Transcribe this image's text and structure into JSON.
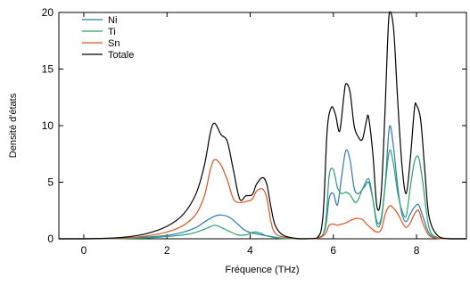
{
  "chart_data": {
    "type": "line",
    "title": "",
    "xlabel": "Fréquence (THz)",
    "ylabel": "Densité d'états",
    "xlim": [
      -0.6,
      9.2
    ],
    "ylim": [
      0,
      20
    ],
    "xticks": [
      0,
      2,
      4,
      6,
      8
    ],
    "yticks": [
      0,
      5,
      10,
      15,
      20
    ],
    "grid": false,
    "legend": "top-left",
    "series": [
      {
        "name": "Ni",
        "color": "#2a7ab8",
        "points": [
          [
            -0.6,
            0
          ],
          [
            0,
            0
          ],
          [
            0.5,
            0.01
          ],
          [
            1.0,
            0.05
          ],
          [
            1.5,
            0.15
          ],
          [
            2.0,
            0.3
          ],
          [
            2.4,
            0.6
          ],
          [
            2.7,
            1.0
          ],
          [
            2.95,
            1.6
          ],
          [
            3.15,
            2.0
          ],
          [
            3.3,
            2.1
          ],
          [
            3.5,
            1.9
          ],
          [
            3.7,
            1.3
          ],
          [
            3.85,
            0.8
          ],
          [
            4.0,
            0.55
          ],
          [
            4.2,
            0.4
          ],
          [
            4.5,
            0.2
          ],
          [
            4.8,
            0.05
          ],
          [
            5.2,
            0.0
          ],
          [
            5.6,
            0.02
          ],
          [
            5.8,
            0.8
          ],
          [
            5.9,
            3.6
          ],
          [
            6.0,
            4.0
          ],
          [
            6.1,
            3.0
          ],
          [
            6.2,
            5.5
          ],
          [
            6.3,
            7.8
          ],
          [
            6.4,
            7.0
          ],
          [
            6.5,
            4.5
          ],
          [
            6.6,
            4.0
          ],
          [
            6.75,
            4.6
          ],
          [
            6.85,
            5.0
          ],
          [
            6.95,
            3.5
          ],
          [
            7.05,
            1.5
          ],
          [
            7.15,
            1.8
          ],
          [
            7.25,
            5.0
          ],
          [
            7.35,
            9.9
          ],
          [
            7.45,
            8.0
          ],
          [
            7.55,
            4.5
          ],
          [
            7.65,
            2.2
          ],
          [
            7.75,
            1.5
          ],
          [
            7.85,
            2.2
          ],
          [
            7.95,
            2.8
          ],
          [
            8.05,
            3.0
          ],
          [
            8.15,
            2.0
          ],
          [
            8.3,
            0.5
          ],
          [
            8.5,
            0.05
          ],
          [
            8.8,
            0
          ],
          [
            9.2,
            0
          ]
        ]
      },
      {
        "name": "Ti",
        "color": "#2aa36a",
        "points": [
          [
            -0.6,
            0
          ],
          [
            0,
            0
          ],
          [
            0.5,
            0.01
          ],
          [
            1.0,
            0.03
          ],
          [
            1.5,
            0.08
          ],
          [
            2.0,
            0.2
          ],
          [
            2.5,
            0.4
          ],
          [
            2.8,
            0.7
          ],
          [
            3.0,
            1.0
          ],
          [
            3.15,
            1.2
          ],
          [
            3.3,
            1.0
          ],
          [
            3.5,
            0.65
          ],
          [
            3.7,
            0.35
          ],
          [
            3.9,
            0.35
          ],
          [
            4.1,
            0.6
          ],
          [
            4.25,
            0.5
          ],
          [
            4.4,
            0.25
          ],
          [
            4.7,
            0.05
          ],
          [
            5.2,
            0.0
          ],
          [
            5.6,
            0.02
          ],
          [
            5.8,
            1.0
          ],
          [
            5.9,
            5.6
          ],
          [
            6.0,
            6.1
          ],
          [
            6.1,
            4.5
          ],
          [
            6.2,
            4.0
          ],
          [
            6.3,
            4.1
          ],
          [
            6.4,
            3.9
          ],
          [
            6.55,
            3.2
          ],
          [
            6.7,
            4.4
          ],
          [
            6.85,
            5.3
          ],
          [
            6.95,
            3.5
          ],
          [
            7.05,
            1.2
          ],
          [
            7.15,
            1.6
          ],
          [
            7.25,
            4.8
          ],
          [
            7.35,
            7.8
          ],
          [
            7.45,
            6.5
          ],
          [
            7.55,
            4.0
          ],
          [
            7.65,
            2.5
          ],
          [
            7.75,
            2.0
          ],
          [
            7.85,
            4.5
          ],
          [
            7.95,
            6.8
          ],
          [
            8.05,
            7.2
          ],
          [
            8.15,
            5.0
          ],
          [
            8.3,
            1.0
          ],
          [
            8.5,
            0.1
          ],
          [
            8.8,
            0
          ],
          [
            9.2,
            0
          ]
        ]
      },
      {
        "name": "Sn",
        "color": "#e0521e",
        "points": [
          [
            -0.6,
            0
          ],
          [
            0,
            0
          ],
          [
            0.5,
            0.02
          ],
          [
            1.0,
            0.08
          ],
          [
            1.5,
            0.25
          ],
          [
            2.0,
            0.6
          ],
          [
            2.4,
            1.2
          ],
          [
            2.7,
            2.2
          ],
          [
            2.9,
            3.8
          ],
          [
            3.05,
            6.2
          ],
          [
            3.15,
            7.0
          ],
          [
            3.3,
            6.5
          ],
          [
            3.45,
            5.2
          ],
          [
            3.6,
            3.5
          ],
          [
            3.75,
            3.2
          ],
          [
            3.9,
            3.3
          ],
          [
            4.05,
            3.5
          ],
          [
            4.15,
            4.2
          ],
          [
            4.3,
            4.4
          ],
          [
            4.4,
            3.6
          ],
          [
            4.5,
            1.5
          ],
          [
            4.6,
            0.5
          ],
          [
            4.8,
            0.15
          ],
          [
            5.2,
            0.0
          ],
          [
            5.6,
            0.02
          ],
          [
            5.8,
            0.4
          ],
          [
            5.9,
            1.2
          ],
          [
            6.0,
            1.3
          ],
          [
            6.1,
            1.2
          ],
          [
            6.2,
            1.3
          ],
          [
            6.3,
            1.4
          ],
          [
            6.4,
            1.6
          ],
          [
            6.55,
            1.8
          ],
          [
            6.7,
            1.7
          ],
          [
            6.8,
            1.3
          ],
          [
            6.95,
            0.8
          ],
          [
            7.05,
            0.6
          ],
          [
            7.15,
            0.8
          ],
          [
            7.25,
            2.2
          ],
          [
            7.35,
            2.9
          ],
          [
            7.45,
            2.7
          ],
          [
            7.55,
            2.2
          ],
          [
            7.65,
            1.5
          ],
          [
            7.75,
            1.0
          ],
          [
            7.85,
            1.4
          ],
          [
            7.95,
            2.2
          ],
          [
            8.05,
            2.5
          ],
          [
            8.15,
            1.4
          ],
          [
            8.3,
            0.3
          ],
          [
            8.5,
            0.05
          ],
          [
            8.8,
            0
          ],
          [
            9.2,
            0
          ]
        ]
      },
      {
        "name": "Totale",
        "color": "#000000",
        "points": [
          [
            -0.6,
            0
          ],
          [
            0,
            0
          ],
          [
            0.5,
            0.04
          ],
          [
            1.0,
            0.15
          ],
          [
            1.5,
            0.45
          ],
          [
            2.0,
            1.1
          ],
          [
            2.4,
            2.2
          ],
          [
            2.7,
            4.0
          ],
          [
            2.9,
            6.5
          ],
          [
            3.05,
            9.5
          ],
          [
            3.15,
            10.2
          ],
          [
            3.3,
            9.2
          ],
          [
            3.45,
            8.6
          ],
          [
            3.6,
            6.0
          ],
          [
            3.75,
            3.5
          ],
          [
            3.9,
            3.8
          ],
          [
            4.05,
            3.9
          ],
          [
            4.15,
            4.8
          ],
          [
            4.3,
            5.4
          ],
          [
            4.4,
            4.8
          ],
          [
            4.5,
            2.8
          ],
          [
            4.6,
            1.2
          ],
          [
            4.8,
            0.3
          ],
          [
            5.2,
            0.0
          ],
          [
            5.6,
            0.05
          ],
          [
            5.75,
            2.0
          ],
          [
            5.85,
            9.5
          ],
          [
            5.95,
            11.6
          ],
          [
            6.05,
            11.0
          ],
          [
            6.15,
            9.5
          ],
          [
            6.25,
            12.5
          ],
          [
            6.3,
            13.7
          ],
          [
            6.4,
            13.0
          ],
          [
            6.5,
            10.0
          ],
          [
            6.6,
            9.0
          ],
          [
            6.7,
            8.8
          ],
          [
            6.8,
            10.5
          ],
          [
            6.85,
            10.7
          ],
          [
            6.95,
            7.5
          ],
          [
            7.05,
            2.8
          ],
          [
            7.15,
            4.0
          ],
          [
            7.25,
            12.0
          ],
          [
            7.3,
            17.0
          ],
          [
            7.35,
            20.0
          ],
          [
            7.45,
            18.5
          ],
          [
            7.55,
            12.0
          ],
          [
            7.65,
            6.5
          ],
          [
            7.75,
            4.0
          ],
          [
            7.85,
            7.0
          ],
          [
            7.95,
            11.5
          ],
          [
            8.0,
            11.8
          ],
          [
            8.1,
            10.5
          ],
          [
            8.2,
            6.0
          ],
          [
            8.3,
            2.0
          ],
          [
            8.5,
            0.3
          ],
          [
            8.8,
            0
          ],
          [
            9.2,
            0
          ]
        ]
      }
    ]
  }
}
